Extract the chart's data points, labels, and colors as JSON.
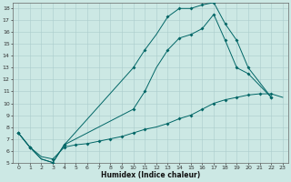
{
  "xlabel": "Humidex (Indice chaleur)",
  "xlim": [
    -0.5,
    23.5
  ],
  "ylim": [
    5,
    18.5
  ],
  "xticks": [
    0,
    1,
    2,
    3,
    4,
    5,
    6,
    7,
    8,
    9,
    10,
    11,
    12,
    13,
    14,
    15,
    16,
    17,
    18,
    19,
    20,
    21,
    22,
    23
  ],
  "yticks": [
    5,
    6,
    7,
    8,
    9,
    10,
    11,
    12,
    13,
    14,
    15,
    16,
    17,
    18
  ],
  "bg_color": "#cce8e4",
  "grid_color": "#aacccc",
  "line_color": "#006666",
  "curve1_x": [
    0,
    1,
    2,
    3,
    4,
    10,
    11,
    12,
    13,
    14,
    15,
    16,
    17,
    18,
    19,
    20,
    22
  ],
  "curve1_y": [
    7.5,
    6.3,
    5.3,
    5.0,
    6.5,
    13.0,
    14.5,
    15.8,
    17.3,
    18.0,
    18.0,
    18.3,
    18.5,
    16.7,
    15.3,
    13.0,
    10.5
  ],
  "curve2_x": [
    0,
    1,
    2,
    3,
    4,
    10,
    11,
    12,
    13,
    14,
    15,
    16,
    17,
    18,
    19,
    20,
    22
  ],
  "curve2_y": [
    7.5,
    6.3,
    5.3,
    5.0,
    6.5,
    9.5,
    11.0,
    13.0,
    14.5,
    15.5,
    15.8,
    16.3,
    17.5,
    15.3,
    13.0,
    12.5,
    10.5
  ],
  "curve3_x": [
    0,
    1,
    2,
    3,
    4,
    5,
    6,
    7,
    8,
    9,
    10,
    11,
    12,
    13,
    14,
    15,
    16,
    17,
    18,
    19,
    20,
    21,
    22,
    23
  ],
  "curve3_y": [
    7.5,
    6.3,
    5.5,
    5.3,
    6.3,
    6.5,
    6.6,
    6.8,
    7.0,
    7.2,
    7.5,
    7.8,
    8.0,
    8.3,
    8.7,
    9.0,
    9.5,
    10.0,
    10.3,
    10.5,
    10.7,
    10.8,
    10.8,
    10.5
  ],
  "markers1_x": [
    0,
    1,
    3,
    4,
    10,
    11,
    13,
    14,
    15,
    16,
    17,
    18,
    19,
    20,
    22
  ],
  "markers1_y": [
    7.5,
    6.3,
    5.0,
    6.5,
    13.0,
    14.5,
    17.3,
    18.0,
    18.0,
    18.3,
    18.5,
    16.7,
    15.3,
    13.0,
    10.5
  ],
  "markers2_x": [
    0,
    1,
    3,
    4,
    10,
    11,
    13,
    14,
    15,
    16,
    17,
    18,
    19,
    20,
    22
  ],
  "markers2_y": [
    7.5,
    6.3,
    5.0,
    6.5,
    9.5,
    11.0,
    14.5,
    15.5,
    15.8,
    16.3,
    17.5,
    15.3,
    13.0,
    12.5,
    10.5
  ],
  "markers3_x": [
    0,
    1,
    3,
    4,
    5,
    6,
    7,
    8,
    9,
    10,
    11,
    13,
    14,
    15,
    16,
    17,
    18,
    19,
    20,
    21,
    22
  ],
  "markers3_y": [
    7.5,
    6.3,
    5.3,
    6.3,
    6.5,
    6.6,
    6.8,
    7.0,
    7.2,
    7.5,
    7.8,
    8.3,
    8.7,
    9.0,
    9.5,
    10.0,
    10.3,
    10.5,
    10.7,
    10.8,
    10.8
  ]
}
